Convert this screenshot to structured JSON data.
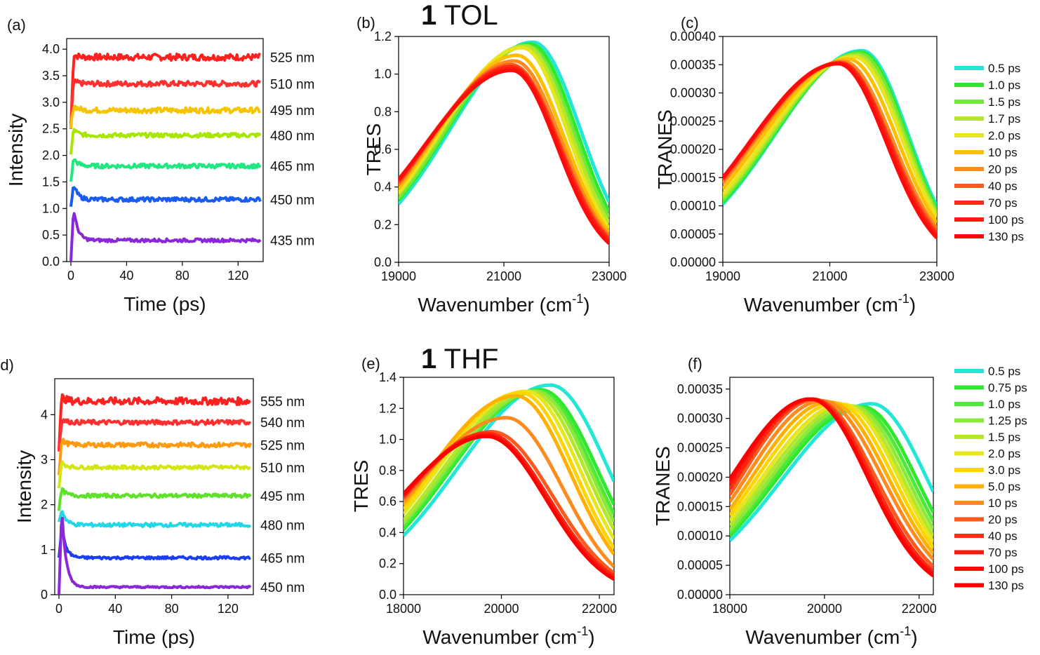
{
  "headings": [
    {
      "bold": "1",
      "text": " TOL"
    },
    {
      "bold": "1",
      "text": " THF"
    }
  ],
  "chart_data": [
    {
      "panel": "(a)",
      "type": "line",
      "xlabel": "Time (ps)",
      "ylabel": "Intensity",
      "xlim": [
        -3,
        138
      ],
      "ylim": [
        0,
        4.2
      ],
      "xticks": [
        "0",
        "40",
        "80",
        "120"
      ],
      "xtick_values": [
        0,
        40,
        80,
        120
      ],
      "yticks": [
        "0.0",
        "0.5",
        "1.0",
        "1.5",
        "2.0",
        "2.5",
        "3.0",
        "3.5",
        "4.0"
      ],
      "ytick_values": [
        0,
        0.5,
        1,
        1.5,
        2,
        2.5,
        3,
        3.5,
        4
      ],
      "series": [
        {
          "name": "525 nm",
          "color": "#ff2020",
          "start": 2.5,
          "plateau": 3.85,
          "peak": 3.9,
          "noise": 0.06
        },
        {
          "name": "510 nm",
          "color": "#ff3030",
          "start": 2.6,
          "plateau": 3.35,
          "peak": 3.4,
          "noise": 0.05
        },
        {
          "name": "495 nm",
          "color": "#f5c400",
          "start": 2.5,
          "plateau": 2.85,
          "peak": 2.95,
          "noise": 0.05
        },
        {
          "name": "480 nm",
          "color": "#a8e600",
          "start": 2.0,
          "plateau": 2.38,
          "peak": 2.5,
          "noise": 0.04
        },
        {
          "name": "465 nm",
          "color": "#20e880",
          "start": 1.5,
          "plateau": 1.8,
          "peak": 1.95,
          "noise": 0.04
        },
        {
          "name": "450 nm",
          "color": "#1a5cf0",
          "start": 1.0,
          "plateau": 1.17,
          "peak": 1.45,
          "noise": 0.04
        },
        {
          "name": "435 nm",
          "color": "#8a28d8",
          "start": 0.0,
          "plateau": 0.4,
          "peak": 1.0,
          "noise": 0.03
        }
      ]
    },
    {
      "panel": "(b)",
      "type": "line",
      "xlabel": "Wavenumber (cm",
      "xlabel_sup": "-1",
      "xlabel_end": ")",
      "ylabel": "TRES",
      "xlim": [
        19000,
        23000
      ],
      "ylim": [
        0,
        1.2
      ],
      "xticks": [
        "19000",
        "21000",
        "23000"
      ],
      "xtick_values": [
        19000,
        21000,
        23000
      ],
      "yticks": [
        "0.0",
        "0.2",
        "0.4",
        "0.6",
        "0.8",
        "1.0",
        "1.2"
      ],
      "ytick_values": [
        0,
        0.2,
        0.4,
        0.6,
        0.8,
        1.0,
        1.2
      ],
      "series": [
        {
          "name": "0.5 ps",
          "color": "#22e6d6",
          "peak_x": 21550,
          "peak_y": 1.17,
          "left_y": 0.31,
          "right_y": 0.32
        },
        {
          "name": "1.0 ps",
          "color": "#2ee82e",
          "peak_x": 21500,
          "peak_y": 1.16,
          "left_y": 0.33,
          "right_y": 0.27
        },
        {
          "name": "1.5 ps",
          "color": "#6fe83a",
          "peak_x": 21450,
          "peak_y": 1.15,
          "left_y": 0.34,
          "right_y": 0.24
        },
        {
          "name": "1.7 ps",
          "color": "#b4e62c",
          "peak_x": 21400,
          "peak_y": 1.15,
          "left_y": 0.36,
          "right_y": 0.21
        },
        {
          "name": "2.0 ps",
          "color": "#e6e61e",
          "peak_x": 21350,
          "peak_y": 1.14,
          "left_y": 0.37,
          "right_y": 0.18
        },
        {
          "name": "10 ps",
          "color": "#ffbf00",
          "peak_x": 21250,
          "peak_y": 1.1,
          "left_y": 0.39,
          "right_y": 0.16
        },
        {
          "name": "20 ps",
          "color": "#ff8a1e",
          "peak_x": 21200,
          "peak_y": 1.07,
          "left_y": 0.41,
          "right_y": 0.14
        },
        {
          "name": "40 ps",
          "color": "#ff5a1e",
          "peak_x": 21150,
          "peak_y": 1.05,
          "left_y": 0.42,
          "right_y": 0.13
        },
        {
          "name": "70 ps",
          "color": "#ff2a14",
          "peak_x": 21150,
          "peak_y": 1.04,
          "left_y": 0.43,
          "right_y": 0.12
        },
        {
          "name": "100 ps",
          "color": "#ff1a10",
          "peak_x": 21150,
          "peak_y": 1.03,
          "left_y": 0.44,
          "right_y": 0.11
        },
        {
          "name": "130 ps",
          "color": "#ff0a0a",
          "peak_x": 21150,
          "peak_y": 1.02,
          "left_y": 0.44,
          "right_y": 0.1
        }
      ]
    },
    {
      "panel": "(c)",
      "type": "line",
      "xlabel": "Wavenumber (cm",
      "xlabel_sup": "-1",
      "xlabel_end": ")",
      "ylabel": "TRANES",
      "xlim": [
        19000,
        23000
      ],
      "ylim": [
        0,
        0.0004
      ],
      "xticks": [
        "19000",
        "21000",
        "23000"
      ],
      "xtick_values": [
        19000,
        21000,
        23000
      ],
      "yticks": [
        "0.00000",
        "0.00005",
        "0.00010",
        "0.00015",
        "0.00020",
        "0.00025",
        "0.00030",
        "0.00035",
        "0.00040"
      ],
      "ytick_values": [
        0,
        5e-05,
        0.0001,
        0.00015,
        0.0002,
        0.00025,
        0.0003,
        0.00035,
        0.0004
      ],
      "series": [
        {
          "name": "0.5 ps",
          "color": "#22e6d6",
          "peak_x": 21600,
          "peak_y": 0.000375,
          "left_y": 0.000103,
          "right_y": 0.0001
        },
        {
          "name": "1.0 ps",
          "color": "#2ee82e",
          "peak_x": 21580,
          "peak_y": 0.000372,
          "left_y": 0.000106,
          "right_y": 9.4e-05
        },
        {
          "name": "1.5 ps",
          "color": "#6fe83a",
          "peak_x": 21550,
          "peak_y": 0.00037,
          "left_y": 0.00011,
          "right_y": 9e-05
        },
        {
          "name": "1.7 ps",
          "color": "#b4e62c",
          "peak_x": 21500,
          "peak_y": 0.000367,
          "left_y": 0.000115,
          "right_y": 8.5e-05
        },
        {
          "name": "2.0 ps",
          "color": "#e6e61e",
          "peak_x": 21450,
          "peak_y": 0.000364,
          "left_y": 0.00012,
          "right_y": 8e-05
        },
        {
          "name": "10 ps",
          "color": "#ffbf00",
          "peak_x": 21350,
          "peak_y": 0.00036,
          "left_y": 0.00013,
          "right_y": 7e-05
        },
        {
          "name": "20 ps",
          "color": "#ff8a1e",
          "peak_x": 21250,
          "peak_y": 0.000356,
          "left_y": 0.00014,
          "right_y": 6e-05
        },
        {
          "name": "40 ps",
          "color": "#ff5a1e",
          "peak_x": 21200,
          "peak_y": 0.000354,
          "left_y": 0.000145,
          "right_y": 5.5e-05
        },
        {
          "name": "70 ps",
          "color": "#ff2a14",
          "peak_x": 21200,
          "peak_y": 0.000353,
          "left_y": 0.000148,
          "right_y": 5e-05
        },
        {
          "name": "100 ps",
          "color": "#ff1a10",
          "peak_x": 21180,
          "peak_y": 0.000352,
          "left_y": 0.00015,
          "right_y": 4.6e-05
        },
        {
          "name": "130 ps",
          "color": "#ff0a0a",
          "peak_x": 21150,
          "peak_y": 0.000352,
          "left_y": 0.00015,
          "right_y": 4.3e-05
        }
      ]
    },
    {
      "panel": "(d)",
      "type": "line",
      "xlabel": "Time (ps)",
      "ylabel": "Intensity",
      "xlim": [
        -3,
        138
      ],
      "ylim": [
        0,
        4.8
      ],
      "xticks": [
        "0",
        "40",
        "80",
        "120"
      ],
      "xtick_values": [
        0,
        40,
        80,
        120
      ],
      "yticks": [
        "0",
        "1",
        "2",
        "3",
        "4"
      ],
      "ytick_values": [
        0,
        1,
        2,
        3,
        4
      ],
      "series": [
        {
          "name": "555 nm",
          "color": "#ff2020",
          "start": 3.3,
          "plateau": 4.3,
          "peak": 4.4,
          "noise": 0.08
        },
        {
          "name": "540 nm",
          "color": "#ff3030",
          "start": 3.2,
          "plateau": 3.83,
          "peak": 3.9,
          "noise": 0.05
        },
        {
          "name": "525 nm",
          "color": "#ff9a10",
          "start": 2.7,
          "plateau": 3.33,
          "peak": 3.45,
          "noise": 0.05
        },
        {
          "name": "510 nm",
          "color": "#d2e614",
          "start": 2.4,
          "plateau": 2.83,
          "peak": 2.95,
          "noise": 0.04
        },
        {
          "name": "495 nm",
          "color": "#5fe02a",
          "start": 1.9,
          "plateau": 2.2,
          "peak": 2.35,
          "noise": 0.04
        },
        {
          "name": "480 nm",
          "color": "#22d8e6",
          "start": 1.6,
          "plateau": 1.55,
          "peak": 1.9,
          "noise": 0.04
        },
        {
          "name": "465 nm",
          "color": "#1a3ef0",
          "start": 0.8,
          "plateau": 0.82,
          "peak": 1.5,
          "noise": 0.03
        },
        {
          "name": "450 nm",
          "color": "#8a28d8",
          "start": 0.0,
          "plateau": 0.17,
          "peak": 1.9,
          "noise": 0.02
        }
      ]
    },
    {
      "panel": "(e)",
      "type": "line",
      "xlabel": "Wavenumber (cm",
      "xlabel_sup": "-1",
      "xlabel_end": ")",
      "ylabel": "TRES",
      "xlim": [
        18000,
        22300
      ],
      "ylim": [
        0,
        1.4
      ],
      "xticks": [
        "18000",
        "20000",
        "22000"
      ],
      "xtick_values": [
        18000,
        20000,
        22000
      ],
      "yticks": [
        "0.0",
        "0.2",
        "0.4",
        "0.6",
        "0.8",
        "1.0",
        "1.2",
        "1.4"
      ],
      "ytick_values": [
        0,
        0.2,
        0.4,
        0.6,
        0.8,
        1.0,
        1.2,
        1.4
      ],
      "series": [
        {
          "name": "0.5 ps",
          "color": "#22e6d6",
          "peak_x": 21000,
          "peak_y": 1.35,
          "left_y": 0.38,
          "right_y": 0.73
        },
        {
          "name": "0.75 ps",
          "color": "#2ee82e",
          "peak_x": 20800,
          "peak_y": 1.32,
          "left_y": 0.42,
          "right_y": 0.58
        },
        {
          "name": "1.0 ps",
          "color": "#4ee83a",
          "peak_x": 20750,
          "peak_y": 1.31,
          "left_y": 0.44,
          "right_y": 0.52
        },
        {
          "name": "1.25 ps",
          "color": "#8ce83a",
          "peak_x": 20700,
          "peak_y": 1.31,
          "left_y": 0.46,
          "right_y": 0.47
        },
        {
          "name": "1.5 ps",
          "color": "#b4e62c",
          "peak_x": 20600,
          "peak_y": 1.31,
          "left_y": 0.48,
          "right_y": 0.42
        },
        {
          "name": "2.0 ps",
          "color": "#e6e61e",
          "peak_x": 20500,
          "peak_y": 1.31,
          "left_y": 0.52,
          "right_y": 0.36
        },
        {
          "name": "3.0 ps",
          "color": "#ffd400",
          "peak_x": 20400,
          "peak_y": 1.3,
          "left_y": 0.55,
          "right_y": 0.3
        },
        {
          "name": "5.0 ps",
          "color": "#ffb000",
          "peak_x": 20300,
          "peak_y": 1.28,
          "left_y": 0.58,
          "right_y": 0.26
        },
        {
          "name": "10 ps",
          "color": "#ff8a1e",
          "peak_x": 20100,
          "peak_y": 1.14,
          "left_y": 0.6,
          "right_y": 0.18
        },
        {
          "name": "20 ps",
          "color": "#ff5a1e",
          "peak_x": 19800,
          "peak_y": 1.05,
          "left_y": 0.62,
          "right_y": 0.14
        },
        {
          "name": "40 ps",
          "color": "#ff2a14",
          "peak_x": 19700,
          "peak_y": 1.04,
          "left_y": 0.63,
          "right_y": 0.12
        },
        {
          "name": "70 ps",
          "color": "#ff1a10",
          "peak_x": 19700,
          "peak_y": 1.03,
          "left_y": 0.64,
          "right_y": 0.11
        },
        {
          "name": "100 ps",
          "color": "#ff0a0a",
          "peak_x": 19700,
          "peak_y": 1.02,
          "left_y": 0.64,
          "right_y": 0.1
        },
        {
          "name": "130 ps",
          "color": "#ff0000",
          "peak_x": 19700,
          "peak_y": 1.02,
          "left_y": 0.65,
          "right_y": 0.1
        }
      ]
    },
    {
      "panel": "(f)",
      "type": "line",
      "xlabel": "Wavenumber (cm",
      "xlabel_sup": "-1",
      "xlabel_end": ")",
      "ylabel": "TRANES",
      "xlim": [
        18000,
        22300
      ],
      "ylim": [
        0,
        0.00037
      ],
      "xticks": [
        "18000",
        "20000",
        "22000"
      ],
      "xtick_values": [
        18000,
        20000,
        22000
      ],
      "yticks": [
        "0.00000",
        "0.00005",
        "0.00010",
        "0.00015",
        "0.00020",
        "0.00025",
        "0.00030",
        "0.00035"
      ],
      "ytick_values": [
        0,
        5e-05,
        0.0001,
        0.00015,
        0.0002,
        0.00025,
        0.0003,
        0.00035
      ],
      "series": [
        {
          "name": "0.5 ps",
          "color": "#22e6d6",
          "peak_x": 21000,
          "peak_y": 0.000325,
          "left_y": 9.2e-05,
          "right_y": 0.000175
        },
        {
          "name": "0.75 ps",
          "color": "#2ee82e",
          "peak_x": 20800,
          "peak_y": 0.00032,
          "left_y": 0.0001,
          "right_y": 0.00014
        },
        {
          "name": "1.0 ps",
          "color": "#4ee83a",
          "peak_x": 20700,
          "peak_y": 0.00032,
          "left_y": 0.000105,
          "right_y": 0.000125
        },
        {
          "name": "1.25 ps",
          "color": "#8ce83a",
          "peak_x": 20600,
          "peak_y": 0.000321,
          "left_y": 0.00011,
          "right_y": 0.000112
        },
        {
          "name": "1.5 ps",
          "color": "#b4e62c",
          "peak_x": 20500,
          "peak_y": 0.000322,
          "left_y": 0.000118,
          "right_y": 0.0001
        },
        {
          "name": "2.0 ps",
          "color": "#e6e61e",
          "peak_x": 20400,
          "peak_y": 0.000324,
          "left_y": 0.000126,
          "right_y": 9e-05
        },
        {
          "name": "3.0 ps",
          "color": "#ffd400",
          "peak_x": 20250,
          "peak_y": 0.000326,
          "left_y": 0.000135,
          "right_y": 8e-05
        },
        {
          "name": "5.0 ps",
          "color": "#ffb000",
          "peak_x": 20100,
          "peak_y": 0.000328,
          "left_y": 0.000145,
          "right_y": 7e-05
        },
        {
          "name": "10 ps",
          "color": "#ff8a1e",
          "peak_x": 19950,
          "peak_y": 0.00033,
          "left_y": 0.000158,
          "right_y": 6e-05
        },
        {
          "name": "20 ps",
          "color": "#ff5a1e",
          "peak_x": 19800,
          "peak_y": 0.000332,
          "left_y": 0.00017,
          "right_y": 4.8e-05
        },
        {
          "name": "40 ps",
          "color": "#ff2a14",
          "peak_x": 19750,
          "peak_y": 0.000333,
          "left_y": 0.00018,
          "right_y": 4e-05
        },
        {
          "name": "70 ps",
          "color": "#ff1a10",
          "peak_x": 19700,
          "peak_y": 0.000333,
          "left_y": 0.000188,
          "right_y": 3.6e-05
        },
        {
          "name": "100 ps",
          "color": "#ff0a0a",
          "peak_x": 19700,
          "peak_y": 0.000333,
          "left_y": 0.000193,
          "right_y": 3.4e-05
        },
        {
          "name": "130 ps",
          "color": "#ff0000",
          "peak_x": 19700,
          "peak_y": 0.000333,
          "left_y": 0.000197,
          "right_y": 3.2e-05
        }
      ]
    }
  ]
}
